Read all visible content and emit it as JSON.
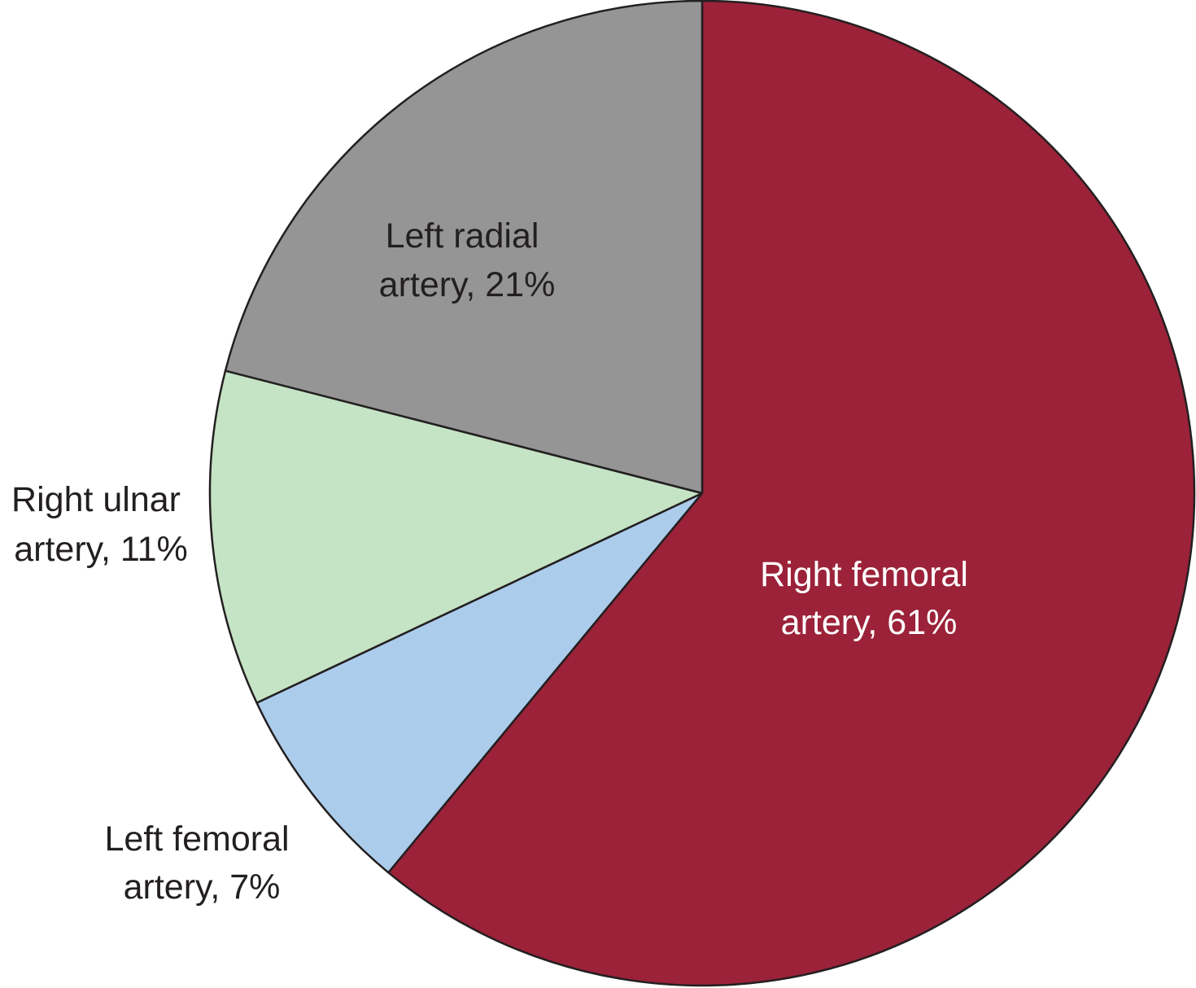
{
  "chart_data": {
    "type": "pie",
    "start_angle_deg": 0,
    "direction": "clockwise",
    "legend": "none",
    "slices": [
      {
        "id": "right-femoral",
        "value": 61,
        "label_line1": "Right femoral",
        "label_line2": "artery, 61%",
        "color": "#9b2239",
        "label_color": "#ffffff"
      },
      {
        "id": "left-femoral",
        "value": 7,
        "label_line1": "Left femoral",
        "label_line2": "artery, 7%",
        "color": "#acccec",
        "label_color": "#231f20"
      },
      {
        "id": "right-ulnar",
        "value": 11,
        "label_line1": "Right ulnar",
        "label_line2": "artery, 11%",
        "color": "#c5e3c5",
        "label_color": "#231f20"
      },
      {
        "id": "left-radial",
        "value": 21,
        "label_line1": "Left radial",
        "label_line2": "artery, 21%",
        "color": "#959595",
        "label_color": "#231f20"
      }
    ]
  }
}
